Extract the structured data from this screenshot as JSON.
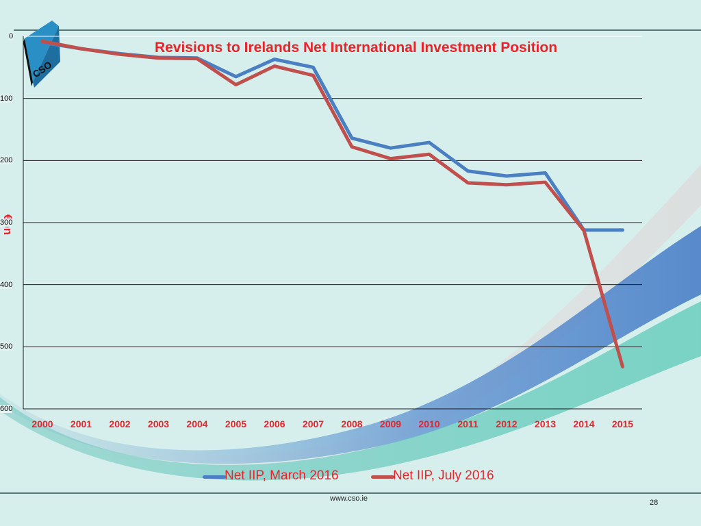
{
  "slide": {
    "footer_url": "www.cso.ie",
    "page_number": "28",
    "logo_text": "CSO",
    "colors": {
      "title": "#e8232a",
      "series1": "#4a7fc1",
      "series2": "#c0504d",
      "background": "#d6efec"
    }
  },
  "chart_data": {
    "type": "line",
    "title": "Revisions to Irelands Net International Investment Position",
    "ylabel": "€bn",
    "xlabel": "",
    "x": [
      "2000",
      "2001",
      "2002",
      "2003",
      "2004",
      "2005",
      "2006",
      "2007",
      "2008",
      "2009",
      "2010",
      "2011",
      "2012",
      "2013",
      "2014",
      "2015"
    ],
    "ylim": [
      -600,
      0
    ],
    "yticks": [
      "0",
      "100",
      "200",
      "300",
      "400",
      "500",
      "600"
    ],
    "grid": true,
    "legend": "bottom",
    "series": [
      {
        "name": "Net IIP, March 2016",
        "color": "#4a7fc1",
        "values": [
          -10,
          -20,
          -28,
          -34,
          -35,
          -65,
          -37,
          -50,
          -164,
          -180,
          -171,
          -217,
          -225,
          -220,
          -312,
          -312
        ]
      },
      {
        "name": "Net IIP, July 2016",
        "color": "#c0504d",
        "values": [
          -8,
          -20,
          -29,
          -35,
          -36,
          -78,
          -48,
          -63,
          -178,
          -197,
          -190,
          -236,
          -239,
          -235,
          -313,
          -532
        ]
      }
    ]
  }
}
